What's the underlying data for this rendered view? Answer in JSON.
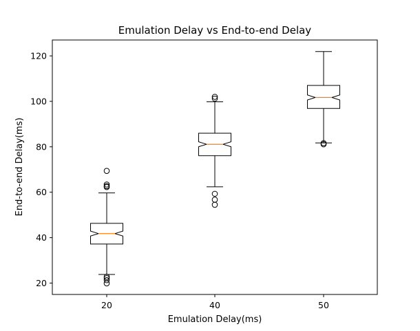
{
  "chart_data": {
    "type": "boxplot",
    "title": "Emulation Delay vs End-to-end Delay",
    "xlabel": "Emulation Delay(ms)",
    "ylabel": "End-to-end Delay(ms)",
    "categories": [
      "20",
      "40",
      "50"
    ],
    "ylim": [
      15,
      127
    ],
    "yticks": [
      "20",
      "40",
      "60",
      "80",
      "100",
      "120"
    ],
    "notched": true,
    "grid": false,
    "colors": {
      "box": "#000000",
      "median": "#ff7f0e",
      "flier": "#000000"
    },
    "boxes": [
      {
        "category": "20",
        "whisker_low": 23.8,
        "q1": 37.2,
        "median": 41.8,
        "q3": 46.3,
        "whisker_high": 59.7,
        "notch_low": 40.7,
        "notch_high": 42.9,
        "fliers": [
          19.9,
          21.3,
          22.2,
          22.8,
          62.3,
          62.7,
          63.4,
          69.4
        ]
      },
      {
        "category": "40",
        "whisker_low": 62.4,
        "q1": 76.1,
        "median": 81.1,
        "q3": 86.0,
        "whisker_high": 99.8,
        "notch_low": 80.0,
        "notch_high": 82.2,
        "fliers": [
          54.5,
          56.7,
          59.3,
          101.2,
          102.0
        ]
      },
      {
        "category": "50",
        "whisker_low": 81.7,
        "q1": 96.9,
        "median": 101.7,
        "q3": 107.0,
        "whisker_high": 121.9,
        "notch_low": 100.6,
        "notch_high": 102.8,
        "fliers": [
          81.1,
          81.6
        ]
      }
    ]
  }
}
